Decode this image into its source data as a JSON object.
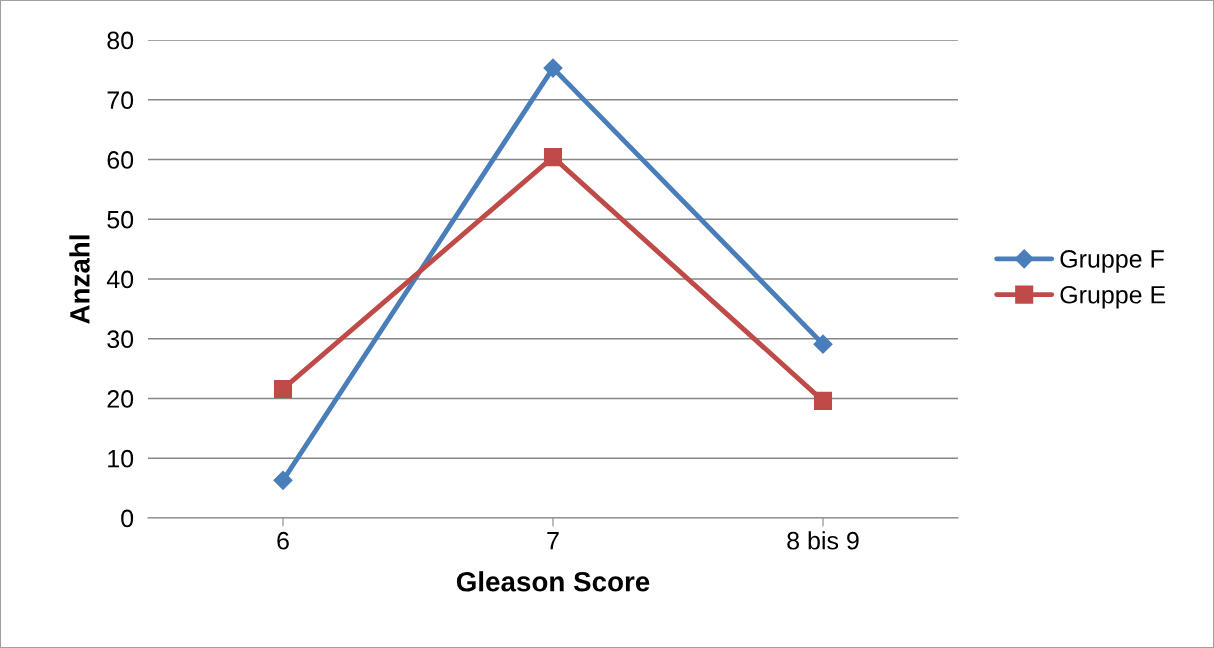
{
  "chart_data": {
    "type": "line",
    "xlabel": "Gleason Score",
    "ylabel": "Anzahl",
    "categories": [
      "6",
      "7",
      "8 bis 9"
    ],
    "series": [
      {
        "name": "Gruppe F",
        "color": "#4a7ebb",
        "values": [
          6.3,
          75.3,
          29.1
        ],
        "marker": "diamond"
      },
      {
        "name": "Gruppe E",
        "color": "#be4b48",
        "values": [
          21.6,
          60.4,
          19.6
        ],
        "marker": "square"
      }
    ],
    "ylim": [
      0,
      80
    ],
    "yticks": [
      0,
      10,
      20,
      30,
      40,
      50,
      60,
      70,
      80
    ],
    "grid": "y",
    "legend": "right",
    "line_style": "solid"
  }
}
